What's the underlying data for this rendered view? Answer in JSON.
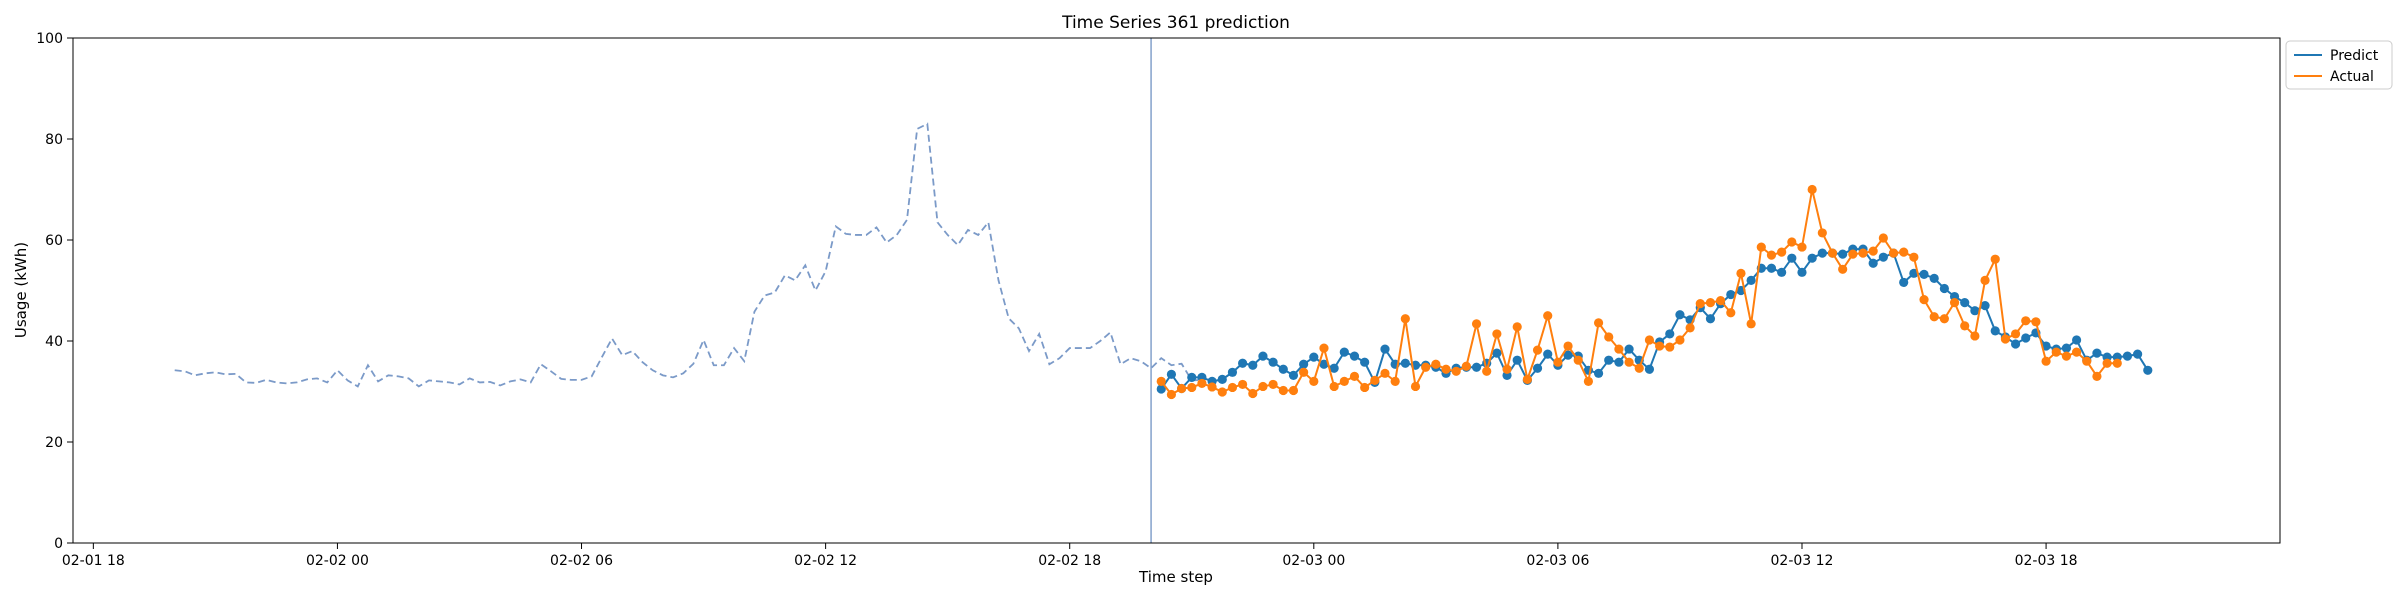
{
  "chart_data": {
    "type": "line",
    "title": "Time Series 361 prediction",
    "xlabel": "Time step",
    "ylabel": "Usage (kWh)",
    "ylim": [
      0,
      100
    ],
    "xlim": [
      "2022-02-01T17:30",
      "2022-02-03T23:45"
    ],
    "x_ticks": [
      {
        "t": "2022-02-01T18:00",
        "label": "02-01 18"
      },
      {
        "t": "2022-02-02T00:00",
        "label": "02-02 00"
      },
      {
        "t": "2022-02-02T06:00",
        "label": "02-02 06"
      },
      {
        "t": "2022-02-02T12:00",
        "label": "02-02 12"
      },
      {
        "t": "2022-02-02T18:00",
        "label": "02-02 18"
      },
      {
        "t": "2022-02-03T00:00",
        "label": "02-03 00"
      },
      {
        "t": "2022-02-03T06:00",
        "label": "02-03 06"
      },
      {
        "t": "2022-02-03T12:00",
        "label": "02-03 12"
      },
      {
        "t": "2022-02-03T18:00",
        "label": "02-03 18"
      }
    ],
    "y_ticks": [
      0,
      20,
      40,
      60,
      80,
      100
    ],
    "grid": false,
    "legend_position": "outside-top-right",
    "forecast_start": "2022-02-02T20:00",
    "colors": {
      "history": "#7b9ac8",
      "predict": "#1f77b4",
      "actual": "#ff7f0e",
      "divider": "#7b9ac8"
    },
    "history": {
      "x_start": "2022-02-01T20:00",
      "step_minutes": 15,
      "values": [
        34.2,
        34,
        33.2,
        33.6,
        33.8,
        33.4,
        33.5,
        31.8,
        31.7,
        32.3,
        31.8,
        31.6,
        31.8,
        32.4,
        32.6,
        31.8,
        34.2,
        32.2,
        31,
        35.2,
        32,
        33.2,
        33,
        32.6,
        31,
        32.2,
        32,
        31.8,
        31.4,
        32.6,
        31.8,
        31.9,
        31.2,
        32,
        32.4,
        31.8,
        35.4,
        34,
        32.5,
        32.3,
        32.3,
        33,
        36.8,
        40.5,
        37.2,
        38,
        35.8,
        34.2,
        33.2,
        32.8,
        33.6,
        35.5,
        40.2,
        35.2,
        35.2,
        38.6,
        36,
        45.8,
        49,
        49.6,
        53,
        52,
        55,
        50,
        53.8,
        62.7,
        61.2,
        61,
        61,
        62.5,
        59.5,
        61,
        64,
        82,
        83,
        63.5,
        61,
        59,
        62,
        61,
        63.5,
        52,
        44.5,
        42.5,
        38,
        41.4,
        35.4,
        36.6,
        38.6,
        38.6,
        38.6,
        40,
        41.7,
        35.4,
        36.6,
        36,
        34.6,
        36.6,
        35.2,
        35.5,
        32.2,
        32.3
      ]
    },
    "series": [
      {
        "name": "Predict",
        "x_start": "2022-02-02T20:15",
        "step_minutes": 15,
        "values": [
          30.5,
          33.4,
          30.6,
          32.8,
          32.8,
          32,
          32.4,
          33.8,
          35.6,
          35.2,
          37,
          35.8,
          34.4,
          33.2,
          35.4,
          36.8,
          35.4,
          34.6,
          37.8,
          37,
          35.8,
          31.8,
          38.4,
          35.4,
          35.6,
          35.2,
          35.2,
          34.8,
          33.6,
          34.6,
          34.8,
          34.8,
          35.6,
          37.6,
          33.2,
          36.2,
          32.2,
          34.6,
          37.4,
          35.2,
          37.2,
          37,
          34.2,
          33.6,
          36.2,
          35.8,
          38.4,
          36.2,
          34.4,
          39.8,
          41.4,
          45.2,
          44.2,
          46.6,
          44.4,
          47.4,
          49.2,
          50,
          52,
          54.4,
          54.4,
          53.6,
          56.4,
          53.6,
          56.4,
          57.4,
          57.4,
          57.2,
          58.2,
          58.2,
          55.4,
          56.6,
          57.4,
          51.6,
          53.4,
          53.2,
          52.4,
          50.4,
          48.8,
          47.6,
          46,
          47,
          42,
          40.8,
          39.4,
          40.6,
          41.6,
          39,
          38.4,
          38.6,
          40.2,
          36.2,
          37.6,
          36.8,
          36.8,
          37,
          37.4,
          34.2
        ]
      },
      {
        "name": "Actual",
        "x_start": "2022-02-02T20:15",
        "step_minutes": 15,
        "values": [
          32,
          29.4,
          30.6,
          30.8,
          31.6,
          30.9,
          29.9,
          30.8,
          31.4,
          29.6,
          31,
          31.4,
          30.2,
          30.2,
          33.8,
          32,
          38.6,
          31,
          32,
          33,
          30.8,
          32.2,
          33.6,
          32,
          44.4,
          31,
          34.8,
          35.4,
          34.4,
          34,
          35,
          43.4,
          34,
          41.4,
          34.4,
          42.8,
          32.4,
          38.2,
          45,
          35.8,
          39,
          36.2,
          32,
          43.6,
          40.8,
          38.4,
          35.8,
          34.6,
          40.2,
          39,
          38.8,
          40.2,
          42.6,
          47.4,
          47.6,
          48,
          45.6,
          53.4,
          43.4,
          58.6,
          57,
          57.6,
          59.6,
          58.6,
          70,
          61.4,
          57.4,
          54.2,
          57.2,
          57.4,
          57.8,
          60.4,
          57.4,
          57.6,
          56.6,
          48.2,
          44.8,
          44.4,
          47.6,
          43,
          41,
          52,
          56.2,
          40.4,
          41.4,
          44,
          43.8,
          36,
          37.8,
          37,
          37.8,
          36,
          33,
          35.6,
          35.6
        ]
      }
    ]
  }
}
